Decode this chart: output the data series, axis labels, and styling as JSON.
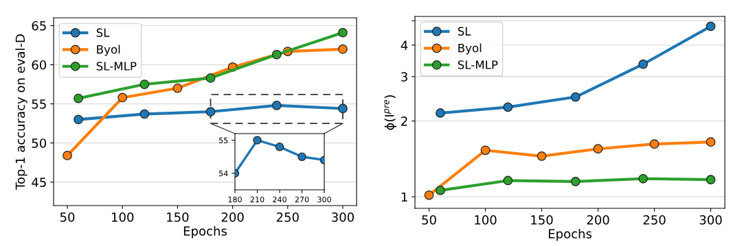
{
  "chart_data": [
    {
      "type": "line",
      "xlabel": "Epochs",
      "ylabel": "Top-1 accuracy on eval-D",
      "xlim": [
        37.5,
        312.5
      ],
      "xticks": [
        50,
        100,
        150,
        200,
        250,
        300
      ],
      "ylim": [
        42,
        66
      ],
      "yticks": [
        45,
        50,
        55,
        60,
        65
      ],
      "grid": "y",
      "legend": "top left",
      "marker": "circle",
      "line_style": "solid",
      "series": [
        {
          "name": "SL",
          "color": "#1f77b4",
          "x": [
            60,
            120,
            180,
            240,
            300
          ],
          "values": [
            53.0,
            53.7,
            54.0,
            54.8,
            54.4
          ]
        },
        {
          "name": "Byol",
          "color": "#ff7f0e",
          "x": [
            50,
            100,
            150,
            200,
            250,
            300
          ],
          "values": [
            48.4,
            55.8,
            57.0,
            59.7,
            61.7,
            62.0
          ]
        },
        {
          "name": "SL-MLP",
          "color": "#2ca02c",
          "x": [
            60,
            120,
            180,
            240,
            300
          ],
          "values": [
            55.7,
            57.5,
            58.3,
            61.3,
            64.1
          ]
        }
      ]
    },
    {
      "type": "line",
      "xlim": [
        180,
        300
      ],
      "xticks": [
        180,
        210,
        240,
        270,
        300
      ],
      "ylim": [
        53.5,
        55.2
      ],
      "yticks": [
        54,
        55
      ],
      "marker": "circle",
      "line_style": "solid",
      "series": [
        {
          "color": "#1f77b4",
          "x": [
            180,
            210,
            240,
            270,
            300
          ],
          "values": [
            54.0,
            55.0,
            54.8,
            54.5,
            54.4
          ]
        }
      ]
    },
    {
      "type": "line",
      "xlabel": "Epochs",
      "ylabel": "ϕ(I$^{pre}$)",
      "log": "y",
      "xlim": [
        37.5,
        312.5
      ],
      "xticks": [
        50,
        100,
        150,
        200,
        250,
        300
      ],
      "ylim": [
        0.9,
        5.2
      ],
      "yticks": [
        1,
        2,
        3,
        4,
        {
          "value": 5,
          "label": null
        }
      ],
      "grid": "y",
      "legend": "top left",
      "marker": "circle",
      "line_style": "solid",
      "series": [
        {
          "name": "SL",
          "color": "#1f77b4",
          "x": [
            60,
            120,
            180,
            240,
            300
          ],
          "values": [
            2.15,
            2.27,
            2.49,
            3.36,
            4.75
          ]
        },
        {
          "name": "Byol",
          "color": "#ff7f0e",
          "x": [
            50,
            100,
            150,
            200,
            250,
            300
          ],
          "values": [
            1.015,
            1.53,
            1.45,
            1.55,
            1.62,
            1.65
          ]
        },
        {
          "name": "SL-MLP",
          "color": "#2ca02c",
          "x": [
            60,
            120,
            180,
            240,
            300
          ],
          "values": [
            1.06,
            1.16,
            1.15,
            1.18,
            1.17
          ]
        }
      ]
    }
  ]
}
